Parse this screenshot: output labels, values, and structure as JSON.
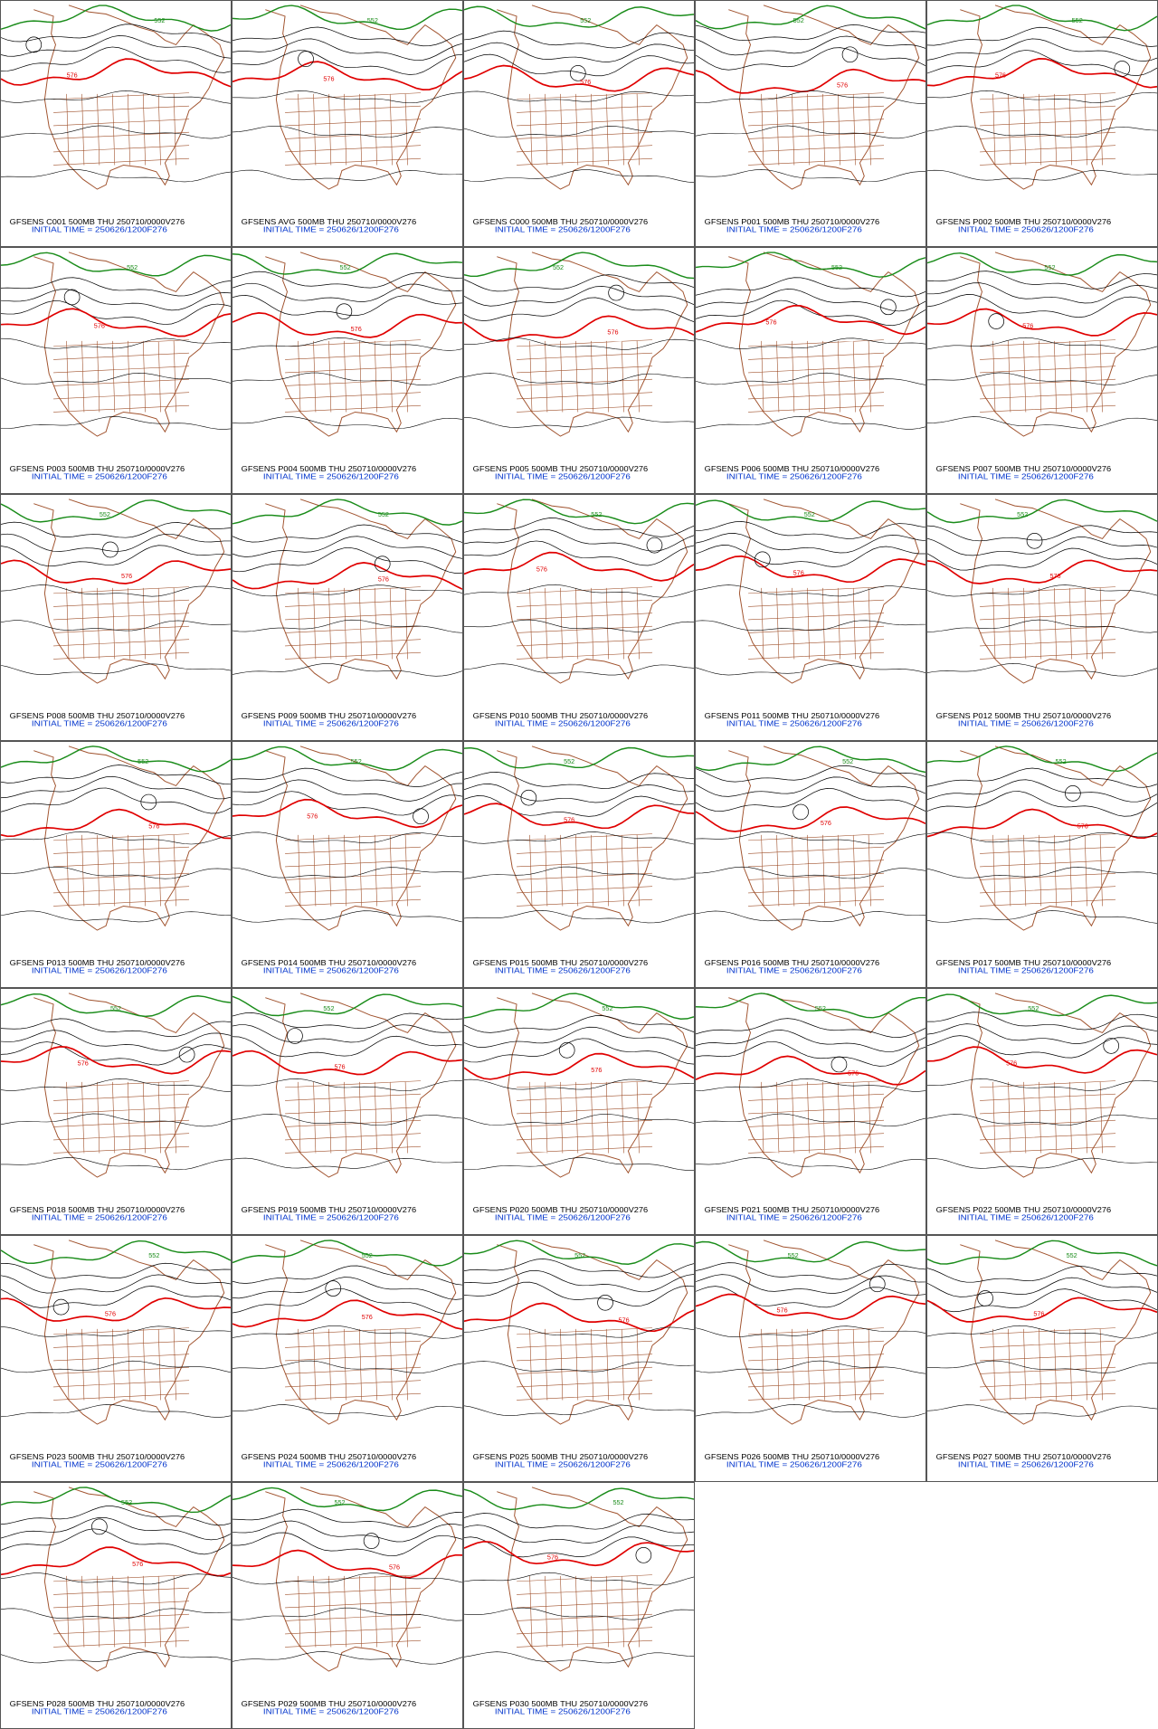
{
  "panels": [
    {
      "title": "GFSENS C001 500MB THU 250710/0000V276",
      "initial": "INITIAL TIME = 250626/1200F276"
    },
    {
      "title": "GFSENS AVG 500MB THU 250710/0000V276",
      "initial": "INITIAL TIME = 250626/1200F276"
    },
    {
      "title": "GFSENS C000 500MB THU 250710/0000V276",
      "initial": "INITIAL TIME = 250626/1200F276"
    },
    {
      "title": "GFSENS P001 500MB THU 250710/0000V276",
      "initial": "INITIAL TIME = 250626/1200F276"
    },
    {
      "title": "GFSENS P002 500MB THU 250710/0000V276",
      "initial": "INITIAL TIME = 250626/1200F276"
    },
    {
      "title": "GFSENS P003 500MB THU 250710/0000V276",
      "initial": "INITIAL TIME = 250626/1200F276"
    },
    {
      "title": "GFSENS P004 500MB THU 250710/0000V276",
      "initial": "INITIAL TIME = 250626/1200F276"
    },
    {
      "title": "GFSENS P005 500MB THU 250710/0000V276",
      "initial": "INITIAL TIME = 250626/1200F276"
    },
    {
      "title": "GFSENS P006 500MB THU 250710/0000V276",
      "initial": "INITIAL TIME = 250626/1200F276"
    },
    {
      "title": "GFSENS P007 500MB THU 250710/0000V276",
      "initial": "INITIAL TIME = 250626/1200F276"
    },
    {
      "title": "GFSENS P008 500MB THU 250710/0000V276",
      "initial": "INITIAL TIME = 250626/1200F276"
    },
    {
      "title": "GFSENS P009 500MB THU 250710/0000V276",
      "initial": "INITIAL TIME = 250626/1200F276"
    },
    {
      "title": "GFSENS P010 500MB THU 250710/0000V276",
      "initial": "INITIAL TIME = 250626/1200F276"
    },
    {
      "title": "GFSENS P011 500MB THU 250710/0000V276",
      "initial": "INITIAL TIME = 250626/1200F276"
    },
    {
      "title": "GFSENS P012 500MB THU 250710/0000V276",
      "initial": "INITIAL TIME = 250626/1200F276"
    },
    {
      "title": "GFSENS P013 500MB THU 250710/0000V276",
      "initial": "INITIAL TIME = 250626/1200F276"
    },
    {
      "title": "GFSENS P014 500MB THU 250710/0000V276",
      "initial": "INITIAL TIME = 250626/1200F276"
    },
    {
      "title": "GFSENS P015 500MB THU 250710/0000V276",
      "initial": "INITIAL TIME = 250626/1200F276"
    },
    {
      "title": "GFSENS P016 500MB THU 250710/0000V276",
      "initial": "INITIAL TIME = 250626/1200F276"
    },
    {
      "title": "GFSENS P017 500MB THU 250710/0000V276",
      "initial": "INITIAL TIME = 250626/1200F276"
    },
    {
      "title": "GFSENS P018 500MB THU 250710/0000V276",
      "initial": "INITIAL TIME = 250626/1200F276"
    },
    {
      "title": "GFSENS P019 500MB THU 250710/0000V276",
      "initial": "INITIAL TIME = 250626/1200F276"
    },
    {
      "title": "GFSENS P020 500MB THU 250710/0000V276",
      "initial": "INITIAL TIME = 250626/1200F276"
    },
    {
      "title": "GFSENS P021 500MB THU 250710/0000V276",
      "initial": "INITIAL TIME = 250626/1200F276"
    },
    {
      "title": "GFSENS P022 500MB THU 250710/0000V276",
      "initial": "INITIAL TIME = 250626/1200F276"
    },
    {
      "title": "GFSENS P023 500MB THU 250710/0000V276",
      "initial": "INITIAL TIME = 250626/1200F276"
    },
    {
      "title": "GFSENS P024 500MB THU 250710/0000V276",
      "initial": "INITIAL TIME = 250626/1200F276"
    },
    {
      "title": "GFSENS P025 500MB THU 250710/0000V276",
      "initial": "INITIAL TIME = 250626/1200F276"
    },
    {
      "title": "GFSENS P026 500MB THU 250710/0000V276",
      "initial": "INITIAL TIME = 250626/1200F276"
    },
    {
      "title": "GFSENS P027 500MB THU 250710/0000V276",
      "initial": "INITIAL TIME = 250626/1200F276"
    },
    {
      "title": "GFSENS P028 500MB THU 250710/0000V276",
      "initial": "INITIAL TIME = 250626/1200F276"
    },
    {
      "title": "GFSENS P029 500MB THU 250710/0000V276",
      "initial": "INITIAL TIME = 250626/1200F276"
    },
    {
      "title": "GFSENS P030 500MB THU 250710/0000V276",
      "initial": "INITIAL TIME = 250626/1200F276"
    }
  ],
  "contour_labels": {
    "red": "576",
    "green": "552"
  }
}
